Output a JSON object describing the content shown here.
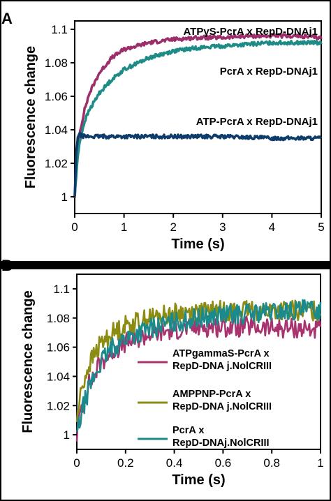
{
  "panel_a": {
    "letter": "A",
    "chart_data": {
      "type": "line",
      "xlabel": "Time (s)",
      "ylabel": "Fluorescence change",
      "xlim": [
        0,
        5
      ],
      "ylim": [
        0.99,
        1.105
      ],
      "xticks": [
        "0",
        "1",
        "2",
        "3",
        "4",
        "5"
      ],
      "yticks": [
        "1",
        "1.02",
        "1.04",
        "1.06",
        "1.08",
        "1.1"
      ],
      "series": [
        {
          "name": "ATPγS-PcrA x RepD-DNAj1",
          "color": "#9c2f6b",
          "x": [
            0,
            0.05,
            0.1,
            0.2,
            0.3,
            0.5,
            0.75,
            1,
            1.5,
            2,
            2.5,
            3,
            3.5,
            4,
            4.5,
            5
          ],
          "y": [
            1.0,
            1.025,
            1.038,
            1.052,
            1.062,
            1.074,
            1.083,
            1.088,
            1.092,
            1.094,
            1.095,
            1.095,
            1.096,
            1.096,
            1.096,
            1.095
          ]
        },
        {
          "name": "PcrA x RepD-DNAj1",
          "color": "#1f8b86",
          "x": [
            0,
            0.05,
            0.1,
            0.2,
            0.3,
            0.5,
            0.75,
            1,
            1.5,
            2,
            2.5,
            3,
            3.5,
            4,
            4.5,
            5
          ],
          "y": [
            1.0,
            1.02,
            1.033,
            1.045,
            1.052,
            1.062,
            1.07,
            1.076,
            1.083,
            1.087,
            1.089,
            1.09,
            1.091,
            1.092,
            1.092,
            1.092
          ]
        },
        {
          "name": "ATP-PcrA x RepD-DNAj1",
          "color": "#0e3d6b",
          "x": [
            0,
            0.03,
            0.06,
            0.1,
            0.2,
            0.5,
            1,
            2,
            3,
            4,
            5
          ],
          "y": [
            1.0,
            1.025,
            1.036,
            1.037,
            1.036,
            1.036,
            1.036,
            1.036,
            1.036,
            1.035,
            1.035
          ]
        }
      ],
      "annotations": [
        "ATPγS-PcrA x RepD-DNAj1",
        "PcrA x RepD-DNAj1",
        "ATP-PcrA x RepD-DNAj1"
      ]
    }
  },
  "panel_b": {
    "letter": "B",
    "chart_data": {
      "type": "line",
      "xlabel": "Time (s)",
      "ylabel": "Fluorescence change",
      "xlim": [
        0,
        1
      ],
      "ylim": [
        0.99,
        1.11
      ],
      "xticks": [
        "0",
        "0.2",
        "0.4",
        "0.6",
        "0.8",
        "1"
      ],
      "yticks": [
        "1",
        "1.02",
        "1.04",
        "1.06",
        "1.08",
        "1.1"
      ],
      "series": [
        {
          "name": "ATPgammaS-PcrA x RepD-DNA j.NolCRIII",
          "color": "#a8336f",
          "x": [
            0,
            0.02,
            0.05,
            0.1,
            0.15,
            0.2,
            0.3,
            0.4,
            0.5,
            0.6,
            0.7,
            0.8,
            0.9,
            1
          ],
          "y": [
            1.0,
            1.02,
            1.035,
            1.05,
            1.058,
            1.063,
            1.069,
            1.072,
            1.074,
            1.074,
            1.074,
            1.073,
            1.073,
            1.072
          ]
        },
        {
          "name": "AMPPNP-PcrA x RepD-DNA j.NolCRIII",
          "color": "#8c8c12",
          "x": [
            0,
            0.02,
            0.05,
            0.1,
            0.15,
            0.2,
            0.3,
            0.4,
            0.5,
            0.6,
            0.7,
            0.8,
            0.9,
            1
          ],
          "y": [
            1.01,
            1.032,
            1.048,
            1.063,
            1.07,
            1.075,
            1.08,
            1.083,
            1.084,
            1.085,
            1.085,
            1.085,
            1.085,
            1.085
          ]
        },
        {
          "name": "PcrA x RepD-DNAj.NolCRIII",
          "color": "#1a8a8c",
          "x": [
            0,
            0.02,
            0.05,
            0.1,
            0.15,
            0.2,
            0.3,
            0.4,
            0.5,
            0.6,
            0.7,
            0.8,
            0.9,
            1
          ],
          "y": [
            1.0,
            1.015,
            1.032,
            1.05,
            1.06,
            1.066,
            1.073,
            1.077,
            1.08,
            1.082,
            1.083,
            1.084,
            1.085,
            1.086
          ]
        }
      ],
      "legend": [
        {
          "line1": "ATPgammaS-PcrA x",
          "line2": "RepD-DNA j.NolCRIII",
          "color": "#a8336f"
        },
        {
          "line1": "AMPPNP-PcrA x",
          "line2": "RepD-DNA j.NolCRIII",
          "color": "#8c8c12"
        },
        {
          "line1": "PcrA x",
          "line2": "RepD-DNAj.NolCRIII",
          "color": "#1a8a8c"
        }
      ]
    }
  }
}
